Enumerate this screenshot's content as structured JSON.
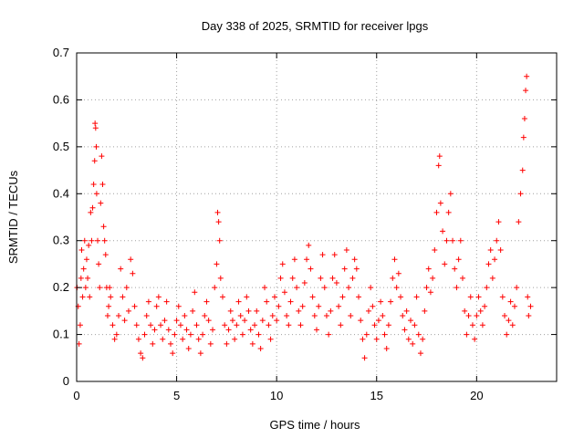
{
  "chart_data": {
    "type": "scatter",
    "title": "Day 338 of 2025, SRMTID for receiver lpgs",
    "xlabel": "GPS time / hours",
    "ylabel": "SRMTID / TECUs",
    "xlim": [
      0,
      24
    ],
    "ylim": [
      0,
      0.7
    ],
    "x_ticks": [
      0,
      5,
      10,
      15,
      20
    ],
    "x_tick_labels": [
      "0",
      "5",
      "10",
      "15",
      "20"
    ],
    "y_ticks": [
      0,
      0.1,
      0.2,
      0.3,
      0.4,
      0.5,
      0.6,
      0.7
    ],
    "y_tick_labels": [
      "0",
      "0.1",
      "0.2",
      "0.3",
      "0.4",
      "0.5",
      "0.6",
      "0.7"
    ],
    "grid": true,
    "marker": "plus",
    "color": "#ff0000",
    "series": [
      {
        "name": "SRMTID",
        "points": [
          [
            0.02,
            0.2
          ],
          [
            0.08,
            0.16
          ],
          [
            0.12,
            0.08
          ],
          [
            0.18,
            0.12
          ],
          [
            0.22,
            0.22
          ],
          [
            0.25,
            0.28
          ],
          [
            0.3,
            0.18
          ],
          [
            0.35,
            0.24
          ],
          [
            0.4,
            0.3
          ],
          [
            0.45,
            0.2
          ],
          [
            0.5,
            0.26
          ],
          [
            0.55,
            0.22
          ],
          [
            0.6,
            0.29
          ],
          [
            0.65,
            0.18
          ],
          [
            0.7,
            0.36
          ],
          [
            0.75,
            0.3
          ],
          [
            0.8,
            0.37
          ],
          [
            0.85,
            0.42
          ],
          [
            0.9,
            0.47
          ],
          [
            0.92,
            0.55
          ],
          [
            0.95,
            0.54
          ],
          [
            0.98,
            0.5
          ],
          [
            1.0,
            0.4
          ],
          [
            1.05,
            0.3
          ],
          [
            1.1,
            0.25
          ],
          [
            1.15,
            0.2
          ],
          [
            1.2,
            0.38
          ],
          [
            1.25,
            0.48
          ],
          [
            1.3,
            0.42
          ],
          [
            1.35,
            0.33
          ],
          [
            1.4,
            0.3
          ],
          [
            1.45,
            0.27
          ],
          [
            1.5,
            0.2
          ],
          [
            1.55,
            0.14
          ],
          [
            1.6,
            0.16
          ],
          [
            1.65,
            0.2
          ],
          [
            1.7,
            0.18
          ],
          [
            1.8,
            0.12
          ],
          [
            1.9,
            0.09
          ],
          [
            2.0,
            0.1
          ],
          [
            2.1,
            0.14
          ],
          [
            2.2,
            0.24
          ],
          [
            2.3,
            0.18
          ],
          [
            2.4,
            0.13
          ],
          [
            2.5,
            0.2
          ],
          [
            2.6,
            0.15
          ],
          [
            2.7,
            0.26
          ],
          [
            2.8,
            0.23
          ],
          [
            2.9,
            0.16
          ],
          [
            3.0,
            0.12
          ],
          [
            3.1,
            0.09
          ],
          [
            3.2,
            0.06
          ],
          [
            3.3,
            0.05
          ],
          [
            3.4,
            0.1
          ],
          [
            3.5,
            0.14
          ],
          [
            3.6,
            0.17
          ],
          [
            3.7,
            0.12
          ],
          [
            3.8,
            0.08
          ],
          [
            3.9,
            0.11
          ],
          [
            4.0,
            0.16
          ],
          [
            4.1,
            0.18
          ],
          [
            4.2,
            0.12
          ],
          [
            4.3,
            0.09
          ],
          [
            4.4,
            0.13
          ],
          [
            4.5,
            0.17
          ],
          [
            4.6,
            0.11
          ],
          [
            4.7,
            0.08
          ],
          [
            4.8,
            0.06
          ],
          [
            4.9,
            0.1
          ],
          [
            5.0,
            0.13
          ],
          [
            5.1,
            0.16
          ],
          [
            5.2,
            0.12
          ],
          [
            5.3,
            0.09
          ],
          [
            5.4,
            0.14
          ],
          [
            5.5,
            0.11
          ],
          [
            5.6,
            0.07
          ],
          [
            5.7,
            0.1
          ],
          [
            5.8,
            0.15
          ],
          [
            5.9,
            0.19
          ],
          [
            6.0,
            0.12
          ],
          [
            6.1,
            0.09
          ],
          [
            6.2,
            0.06
          ],
          [
            6.3,
            0.1
          ],
          [
            6.4,
            0.14
          ],
          [
            6.5,
            0.17
          ],
          [
            6.6,
            0.13
          ],
          [
            6.7,
            0.08
          ],
          [
            6.8,
            0.11
          ],
          [
            6.9,
            0.2
          ],
          [
            7.0,
            0.25
          ],
          [
            7.05,
            0.36
          ],
          [
            7.1,
            0.34
          ],
          [
            7.15,
            0.3
          ],
          [
            7.2,
            0.22
          ],
          [
            7.3,
            0.18
          ],
          [
            7.4,
            0.12
          ],
          [
            7.5,
            0.08
          ],
          [
            7.6,
            0.11
          ],
          [
            7.7,
            0.15
          ],
          [
            7.8,
            0.13
          ],
          [
            7.9,
            0.09
          ],
          [
            8.0,
            0.12
          ],
          [
            8.1,
            0.17
          ],
          [
            8.2,
            0.14
          ],
          [
            8.3,
            0.1
          ],
          [
            8.4,
            0.13
          ],
          [
            8.5,
            0.18
          ],
          [
            8.6,
            0.15
          ],
          [
            8.7,
            0.11
          ],
          [
            8.8,
            0.08
          ],
          [
            8.9,
            0.12
          ],
          [
            9.0,
            0.15
          ],
          [
            9.1,
            0.1
          ],
          [
            9.2,
            0.07
          ],
          [
            9.3,
            0.13
          ],
          [
            9.4,
            0.2
          ],
          [
            9.5,
            0.17
          ],
          [
            9.6,
            0.12
          ],
          [
            9.7,
            0.09
          ],
          [
            9.8,
            0.14
          ],
          [
            9.9,
            0.18
          ],
          [
            10.0,
            0.13
          ],
          [
            10.1,
            0.16
          ],
          [
            10.2,
            0.22
          ],
          [
            10.3,
            0.25
          ],
          [
            10.4,
            0.19
          ],
          [
            10.5,
            0.14
          ],
          [
            10.6,
            0.12
          ],
          [
            10.7,
            0.17
          ],
          [
            10.8,
            0.22
          ],
          [
            10.9,
            0.26
          ],
          [
            11.0,
            0.2
          ],
          [
            11.1,
            0.15
          ],
          [
            11.2,
            0.12
          ],
          [
            11.3,
            0.16
          ],
          [
            11.4,
            0.21
          ],
          [
            11.5,
            0.26
          ],
          [
            11.6,
            0.29
          ],
          [
            11.7,
            0.24
          ],
          [
            11.8,
            0.18
          ],
          [
            11.9,
            0.14
          ],
          [
            12.0,
            0.11
          ],
          [
            12.1,
            0.16
          ],
          [
            12.2,
            0.22
          ],
          [
            12.3,
            0.27
          ],
          [
            12.4,
            0.2
          ],
          [
            12.5,
            0.14
          ],
          [
            12.6,
            0.1
          ],
          [
            12.7,
            0.15
          ],
          [
            12.8,
            0.22
          ],
          [
            12.9,
            0.27
          ],
          [
            13.0,
            0.21
          ],
          [
            13.1,
            0.16
          ],
          [
            13.2,
            0.12
          ],
          [
            13.3,
            0.18
          ],
          [
            13.4,
            0.24
          ],
          [
            13.5,
            0.28
          ],
          [
            13.6,
            0.2
          ],
          [
            13.7,
            0.14
          ],
          [
            13.8,
            0.22
          ],
          [
            13.9,
            0.26
          ],
          [
            14.0,
            0.24
          ],
          [
            14.1,
            0.18
          ],
          [
            14.2,
            0.13
          ],
          [
            14.3,
            0.09
          ],
          [
            14.4,
            0.05
          ],
          [
            14.5,
            0.1
          ],
          [
            14.6,
            0.15
          ],
          [
            14.7,
            0.2
          ],
          [
            14.8,
            0.16
          ],
          [
            14.9,
            0.12
          ],
          [
            15.0,
            0.09
          ],
          [
            15.1,
            0.13
          ],
          [
            15.2,
            0.17
          ],
          [
            15.3,
            0.14
          ],
          [
            15.4,
            0.1
          ],
          [
            15.5,
            0.07
          ],
          [
            15.6,
            0.12
          ],
          [
            15.7,
            0.17
          ],
          [
            15.8,
            0.22
          ],
          [
            15.9,
            0.26
          ],
          [
            16.0,
            0.2
          ],
          [
            16.1,
            0.23
          ],
          [
            16.2,
            0.18
          ],
          [
            16.3,
            0.14
          ],
          [
            16.4,
            0.11
          ],
          [
            16.5,
            0.15
          ],
          [
            16.6,
            0.09
          ],
          [
            16.7,
            0.13
          ],
          [
            16.8,
            0.08
          ],
          [
            16.9,
            0.12
          ],
          [
            17.0,
            0.18
          ],
          [
            17.1,
            0.1
          ],
          [
            17.2,
            0.06
          ],
          [
            17.3,
            0.09
          ],
          [
            17.4,
            0.15
          ],
          [
            17.5,
            0.2
          ],
          [
            17.6,
            0.24
          ],
          [
            17.7,
            0.19
          ],
          [
            17.8,
            0.22
          ],
          [
            17.9,
            0.28
          ],
          [
            18.0,
            0.36
          ],
          [
            18.1,
            0.46
          ],
          [
            18.15,
            0.48
          ],
          [
            18.2,
            0.38
          ],
          [
            18.3,
            0.32
          ],
          [
            18.4,
            0.25
          ],
          [
            18.5,
            0.3
          ],
          [
            18.6,
            0.36
          ],
          [
            18.7,
            0.4
          ],
          [
            18.8,
            0.3
          ],
          [
            18.9,
            0.24
          ],
          [
            19.0,
            0.2
          ],
          [
            19.1,
            0.26
          ],
          [
            19.2,
            0.3
          ],
          [
            19.3,
            0.22
          ],
          [
            19.4,
            0.15
          ],
          [
            19.5,
            0.1
          ],
          [
            19.6,
            0.14
          ],
          [
            19.7,
            0.18
          ],
          [
            19.8,
            0.12
          ],
          [
            19.9,
            0.09
          ],
          [
            20.0,
            0.14
          ],
          [
            20.1,
            0.18
          ],
          [
            20.2,
            0.15
          ],
          [
            20.3,
            0.12
          ],
          [
            20.4,
            0.16
          ],
          [
            20.5,
            0.2
          ],
          [
            20.6,
            0.25
          ],
          [
            20.7,
            0.28
          ],
          [
            20.8,
            0.22
          ],
          [
            20.9,
            0.26
          ],
          [
            21.0,
            0.3
          ],
          [
            21.1,
            0.34
          ],
          [
            21.2,
            0.28
          ],
          [
            21.3,
            0.18
          ],
          [
            21.4,
            0.14
          ],
          [
            21.5,
            0.1
          ],
          [
            21.6,
            0.13
          ],
          [
            21.7,
            0.17
          ],
          [
            21.8,
            0.12
          ],
          [
            21.9,
            0.16
          ],
          [
            22.0,
            0.2
          ],
          [
            22.1,
            0.34
          ],
          [
            22.2,
            0.4
          ],
          [
            22.3,
            0.45
          ],
          [
            22.35,
            0.52
          ],
          [
            22.4,
            0.56
          ],
          [
            22.45,
            0.62
          ],
          [
            22.5,
            0.65
          ],
          [
            22.55,
            0.18
          ],
          [
            22.6,
            0.14
          ],
          [
            22.7,
            0.16
          ]
        ]
      }
    ]
  }
}
